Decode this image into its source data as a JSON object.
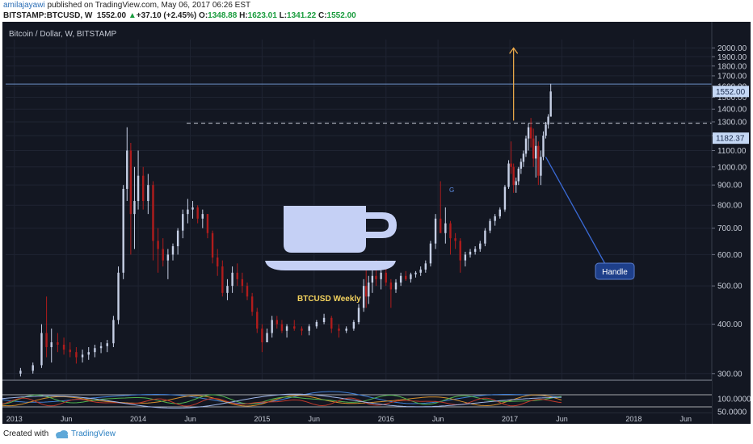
{
  "header": {
    "author": "amilajayawi",
    "published_text": "published on TradingView.com, May 06, 2017 06:26 EST",
    "symbol": "BITSTAMP:BTCUSD, W",
    "price": "1552.00",
    "change_arrow": "▲",
    "change": "+37.10 (+2.45%)",
    "o_label": "O:",
    "o_value": "1348.88",
    "h_label": "H:",
    "h_value": "1623.01",
    "l_label": "L:",
    "l_value": "1341.22",
    "c_label": "C:",
    "c_value": "1552.00"
  },
  "chart_title": "Bitcoin / Dollar, W, BITSTAMP",
  "annotations": {
    "weekly_label": "BTCUSD Weekly",
    "handle_label": "Handle",
    "g_marker": "G"
  },
  "price_tags": {
    "last": "1552.00",
    "level": "1182.37"
  },
  "footer": {
    "created_with": "Created with",
    "brand": "TradingView"
  },
  "colors": {
    "background": "#131722",
    "up_candle": "#c7d0e6",
    "down_candle": "#b01c1c",
    "arrow": "#f5b04c",
    "cup_icon": "#c5d0f5",
    "weekly_text": "#f4d35e",
    "handle_box": "#1e3f8a",
    "tag_bg": "#c5d8f5",
    "hline": "#6c8fc4"
  },
  "chart_data": {
    "type": "candlestick",
    "title": "Bitcoin / Dollar, W, BITSTAMP",
    "y_ticks": [
      "2000.00",
      "1900.00",
      "1800.00",
      "1700.00",
      "1600.00",
      "1500.00",
      "1400.00",
      "1300.00",
      "1200.00",
      "1100.00",
      "1000.00",
      "900.00",
      "800.00",
      "700.00",
      "600.00",
      "500.00",
      "400.00",
      "300.00"
    ],
    "y_scale": "log",
    "ylim": [
      290,
      2100
    ],
    "x_ticks": [
      "2013",
      "Jun",
      "2014",
      "Jun",
      "2015",
      "Jun",
      "2016",
      "Jun",
      "2017",
      "Jun",
      "2018",
      "Jun"
    ],
    "x_tick_years": [
      2013.0,
      2013.42,
      2014.0,
      2014.42,
      2015.0,
      2015.42,
      2016.0,
      2016.42,
      2017.0,
      2017.42,
      2018.0,
      2018.42
    ],
    "xlim": [
      2012.93,
      2018.63
    ],
    "dashed_level": 1290,
    "resistance_level": 1620,
    "arrow": {
      "date": 2017.03,
      "from": 1310,
      "to": 2000
    },
    "handle_pointer": {
      "date": 2017.27,
      "value": 1060
    },
    "series": [
      {
        "date": 2013.05,
        "o": 300,
        "h": 310,
        "l": 295,
        "c": 305
      },
      {
        "date": 2013.15,
        "o": 305,
        "h": 320,
        "l": 300,
        "c": 315
      },
      {
        "date": 2013.22,
        "o": 315,
        "h": 400,
        "l": 310,
        "c": 380
      },
      {
        "date": 2013.26,
        "o": 380,
        "h": 470,
        "l": 330,
        "c": 350
      },
      {
        "date": 2013.3,
        "o": 350,
        "h": 390,
        "l": 320,
        "c": 360
      },
      {
        "date": 2013.35,
        "o": 360,
        "h": 380,
        "l": 340,
        "c": 355
      },
      {
        "date": 2013.4,
        "o": 355,
        "h": 370,
        "l": 335,
        "c": 345
      },
      {
        "date": 2013.45,
        "o": 345,
        "h": 360,
        "l": 330,
        "c": 340
      },
      {
        "date": 2013.5,
        "o": 340,
        "h": 350,
        "l": 318,
        "c": 330
      },
      {
        "date": 2013.55,
        "o": 330,
        "h": 345,
        "l": 320,
        "c": 335
      },
      {
        "date": 2013.6,
        "o": 335,
        "h": 350,
        "l": 325,
        "c": 340
      },
      {
        "date": 2013.65,
        "o": 340,
        "h": 355,
        "l": 330,
        "c": 348
      },
      {
        "date": 2013.7,
        "o": 348,
        "h": 360,
        "l": 338,
        "c": 352
      },
      {
        "date": 2013.75,
        "o": 352,
        "h": 365,
        "l": 340,
        "c": 358
      },
      {
        "date": 2013.8,
        "o": 358,
        "h": 420,
        "l": 350,
        "c": 410
      },
      {
        "date": 2013.84,
        "o": 410,
        "h": 560,
        "l": 400,
        "c": 540
      },
      {
        "date": 2013.88,
        "o": 540,
        "h": 900,
        "l": 520,
        "c": 880
      },
      {
        "date": 2013.91,
        "o": 880,
        "h": 1260,
        "l": 820,
        "c": 1100
      },
      {
        "date": 2013.94,
        "o": 1100,
        "h": 1150,
        "l": 600,
        "c": 760
      },
      {
        "date": 2013.97,
        "o": 760,
        "h": 1000,
        "l": 620,
        "c": 820
      },
      {
        "date": 2014.0,
        "o": 820,
        "h": 1100,
        "l": 780,
        "c": 950
      },
      {
        "date": 2014.04,
        "o": 950,
        "h": 1000,
        "l": 780,
        "c": 820
      },
      {
        "date": 2014.08,
        "o": 820,
        "h": 960,
        "l": 760,
        "c": 900
      },
      {
        "date": 2014.12,
        "o": 900,
        "h": 920,
        "l": 580,
        "c": 650
      },
      {
        "date": 2014.16,
        "o": 650,
        "h": 700,
        "l": 540,
        "c": 620
      },
      {
        "date": 2014.2,
        "o": 620,
        "h": 660,
        "l": 560,
        "c": 580
      },
      {
        "date": 2014.24,
        "o": 580,
        "h": 620,
        "l": 520,
        "c": 600
      },
      {
        "date": 2014.28,
        "o": 600,
        "h": 640,
        "l": 580,
        "c": 630
      },
      {
        "date": 2014.32,
        "o": 630,
        "h": 700,
        "l": 600,
        "c": 690
      },
      {
        "date": 2014.36,
        "o": 690,
        "h": 780,
        "l": 660,
        "c": 760
      },
      {
        "date": 2014.4,
        "o": 760,
        "h": 830,
        "l": 720,
        "c": 780
      },
      {
        "date": 2014.44,
        "o": 780,
        "h": 820,
        "l": 740,
        "c": 790
      },
      {
        "date": 2014.48,
        "o": 790,
        "h": 800,
        "l": 720,
        "c": 740
      },
      {
        "date": 2014.52,
        "o": 740,
        "h": 780,
        "l": 700,
        "c": 760
      },
      {
        "date": 2014.56,
        "o": 760,
        "h": 760,
        "l": 660,
        "c": 680
      },
      {
        "date": 2014.6,
        "o": 680,
        "h": 690,
        "l": 570,
        "c": 590
      },
      {
        "date": 2014.64,
        "o": 590,
        "h": 620,
        "l": 530,
        "c": 560
      },
      {
        "date": 2014.68,
        "o": 560,
        "h": 580,
        "l": 470,
        "c": 480
      },
      {
        "date": 2014.72,
        "o": 480,
        "h": 520,
        "l": 460,
        "c": 500
      },
      {
        "date": 2014.76,
        "o": 500,
        "h": 560,
        "l": 480,
        "c": 540
      },
      {
        "date": 2014.8,
        "o": 540,
        "h": 570,
        "l": 500,
        "c": 520
      },
      {
        "date": 2014.84,
        "o": 520,
        "h": 540,
        "l": 480,
        "c": 500
      },
      {
        "date": 2014.88,
        "o": 500,
        "h": 510,
        "l": 460,
        "c": 470
      },
      {
        "date": 2014.92,
        "o": 470,
        "h": 480,
        "l": 420,
        "c": 430
      },
      {
        "date": 2014.96,
        "o": 430,
        "h": 440,
        "l": 380,
        "c": 390
      },
      {
        "date": 2015.0,
        "o": 390,
        "h": 400,
        "l": 340,
        "c": 360
      },
      {
        "date": 2015.04,
        "o": 360,
        "h": 390,
        "l": 360,
        "c": 380
      },
      {
        "date": 2015.08,
        "o": 380,
        "h": 420,
        "l": 370,
        "c": 410
      },
      {
        "date": 2015.12,
        "o": 410,
        "h": 420,
        "l": 390,
        "c": 400
      },
      {
        "date": 2015.16,
        "o": 400,
        "h": 410,
        "l": 380,
        "c": 385
      },
      {
        "date": 2015.2,
        "o": 385,
        "h": 400,
        "l": 370,
        "c": 395
      },
      {
        "date": 2015.26,
        "o": 395,
        "h": 410,
        "l": 385,
        "c": 390
      },
      {
        "date": 2015.32,
        "o": 390,
        "h": 395,
        "l": 375,
        "c": 385
      },
      {
        "date": 2015.38,
        "o": 385,
        "h": 400,
        "l": 375,
        "c": 395
      },
      {
        "date": 2015.44,
        "o": 395,
        "h": 410,
        "l": 390,
        "c": 405
      },
      {
        "date": 2015.5,
        "o": 405,
        "h": 425,
        "l": 400,
        "c": 415
      },
      {
        "date": 2015.56,
        "o": 415,
        "h": 420,
        "l": 380,
        "c": 390
      },
      {
        "date": 2015.62,
        "o": 390,
        "h": 400,
        "l": 370,
        "c": 385
      },
      {
        "date": 2015.68,
        "o": 385,
        "h": 395,
        "l": 380,
        "c": 390
      },
      {
        "date": 2015.74,
        "o": 390,
        "h": 410,
        "l": 385,
        "c": 405
      },
      {
        "date": 2015.78,
        "o": 405,
        "h": 450,
        "l": 400,
        "c": 440
      },
      {
        "date": 2015.82,
        "o": 440,
        "h": 520,
        "l": 430,
        "c": 500
      },
      {
        "date": 2015.84,
        "o": 500,
        "h": 560,
        "l": 440,
        "c": 470
      },
      {
        "date": 2015.86,
        "o": 470,
        "h": 530,
        "l": 450,
        "c": 510
      },
      {
        "date": 2015.89,
        "o": 510,
        "h": 550,
        "l": 480,
        "c": 530
      },
      {
        "date": 2015.92,
        "o": 530,
        "h": 580,
        "l": 500,
        "c": 520
      },
      {
        "date": 2015.96,
        "o": 520,
        "h": 560,
        "l": 490,
        "c": 540
      },
      {
        "date": 2016.0,
        "o": 540,
        "h": 560,
        "l": 500,
        "c": 510
      },
      {
        "date": 2016.04,
        "o": 510,
        "h": 520,
        "l": 440,
        "c": 490
      },
      {
        "date": 2016.08,
        "o": 490,
        "h": 520,
        "l": 480,
        "c": 510
      },
      {
        "date": 2016.12,
        "o": 510,
        "h": 540,
        "l": 500,
        "c": 530
      },
      {
        "date": 2016.16,
        "o": 530,
        "h": 545,
        "l": 515,
        "c": 520
      },
      {
        "date": 2016.2,
        "o": 520,
        "h": 540,
        "l": 510,
        "c": 535
      },
      {
        "date": 2016.24,
        "o": 535,
        "h": 545,
        "l": 525,
        "c": 540
      },
      {
        "date": 2016.28,
        "o": 540,
        "h": 560,
        "l": 530,
        "c": 550
      },
      {
        "date": 2016.32,
        "o": 550,
        "h": 580,
        "l": 540,
        "c": 570
      },
      {
        "date": 2016.36,
        "o": 570,
        "h": 650,
        "l": 560,
        "c": 640
      },
      {
        "date": 2016.4,
        "o": 640,
        "h": 760,
        "l": 620,
        "c": 740
      },
      {
        "date": 2016.44,
        "o": 740,
        "h": 920,
        "l": 710,
        "c": 680
      },
      {
        "date": 2016.48,
        "o": 680,
        "h": 790,
        "l": 640,
        "c": 720
      },
      {
        "date": 2016.52,
        "o": 720,
        "h": 730,
        "l": 600,
        "c": 660
      },
      {
        "date": 2016.56,
        "o": 660,
        "h": 680,
        "l": 620,
        "c": 650
      },
      {
        "date": 2016.6,
        "o": 650,
        "h": 660,
        "l": 540,
        "c": 580
      },
      {
        "date": 2016.64,
        "o": 580,
        "h": 610,
        "l": 560,
        "c": 600
      },
      {
        "date": 2016.68,
        "o": 600,
        "h": 620,
        "l": 590,
        "c": 610
      },
      {
        "date": 2016.72,
        "o": 610,
        "h": 630,
        "l": 600,
        "c": 620
      },
      {
        "date": 2016.76,
        "o": 620,
        "h": 650,
        "l": 610,
        "c": 640
      },
      {
        "date": 2016.8,
        "o": 640,
        "h": 700,
        "l": 630,
        "c": 690
      },
      {
        "date": 2016.84,
        "o": 690,
        "h": 740,
        "l": 680,
        "c": 730
      },
      {
        "date": 2016.88,
        "o": 730,
        "h": 760,
        "l": 710,
        "c": 750
      },
      {
        "date": 2016.92,
        "o": 750,
        "h": 790,
        "l": 740,
        "c": 780
      },
      {
        "date": 2016.96,
        "o": 780,
        "h": 900,
        "l": 770,
        "c": 890
      },
      {
        "date": 2016.99,
        "o": 890,
        "h": 1040,
        "l": 880,
        "c": 1020
      },
      {
        "date": 2017.01,
        "o": 1020,
        "h": 1160,
        "l": 960,
        "c": 1000
      },
      {
        "date": 2017.03,
        "o": 1000,
        "h": 1020,
        "l": 860,
        "c": 900
      },
      {
        "date": 2017.05,
        "o": 900,
        "h": 940,
        "l": 860,
        "c": 920
      },
      {
        "date": 2017.07,
        "o": 920,
        "h": 1000,
        "l": 900,
        "c": 990
      },
      {
        "date": 2017.09,
        "o": 990,
        "h": 1050,
        "l": 960,
        "c": 1030
      },
      {
        "date": 2017.11,
        "o": 1030,
        "h": 1100,
        "l": 1000,
        "c": 1080
      },
      {
        "date": 2017.13,
        "o": 1080,
        "h": 1200,
        "l": 1060,
        "c": 1180
      },
      {
        "date": 2017.15,
        "o": 1180,
        "h": 1290,
        "l": 1100,
        "c": 1260
      },
      {
        "date": 2017.17,
        "o": 1260,
        "h": 1330,
        "l": 1120,
        "c": 1180
      },
      {
        "date": 2017.19,
        "o": 1180,
        "h": 1250,
        "l": 1000,
        "c": 1050
      },
      {
        "date": 2017.21,
        "o": 1050,
        "h": 1200,
        "l": 940,
        "c": 1130
      },
      {
        "date": 2017.23,
        "o": 1130,
        "h": 1160,
        "l": 900,
        "c": 950
      },
      {
        "date": 2017.25,
        "o": 950,
        "h": 1100,
        "l": 900,
        "c": 1060
      },
      {
        "date": 2017.27,
        "o": 1060,
        "h": 1230,
        "l": 1040,
        "c": 1200
      },
      {
        "date": 2017.29,
        "o": 1200,
        "h": 1300,
        "l": 1180,
        "c": 1280
      },
      {
        "date": 2017.31,
        "o": 1280,
        "h": 1360,
        "l": 1250,
        "c": 1340
      },
      {
        "date": 2017.33,
        "o": 1340,
        "h": 1623,
        "l": 1341,
        "c": 1552
      }
    ]
  }
}
